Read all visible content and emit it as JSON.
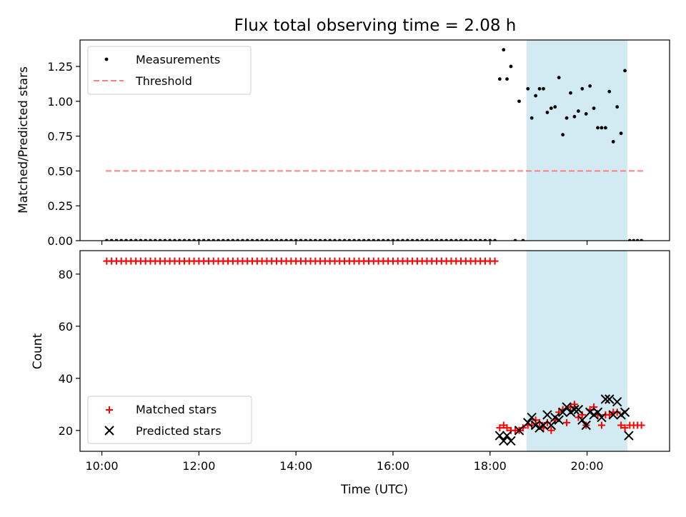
{
  "title": "Flux total observing time = 2.08 h",
  "colors": {
    "measurements": "#000000",
    "threshold": "#ff7f7f",
    "matched": "#ff0000",
    "predicted": "#000000",
    "band": "#add8e6"
  },
  "chart_data": [
    {
      "type": "scatter",
      "panel": "top",
      "ylabel": "Matched/Predicted stars",
      "xlabel": "",
      "xlim": [
        9.55,
        21.7
      ],
      "ylim": [
        0,
        1.44
      ],
      "yticks": [
        0.0,
        0.25,
        0.5,
        0.75,
        1.0,
        1.25
      ],
      "ytick_labels": [
        "0.00",
        "0.25",
        "0.50",
        "0.75",
        "1.00",
        "1.25"
      ],
      "xticks": [
        10,
        12,
        14,
        16,
        18,
        20
      ],
      "tick_labels_visible": false,
      "highlight_band": [
        18.75,
        20.83
      ],
      "legend": {
        "placement": "upper-left",
        "entries": [
          "Measurements",
          "Threshold"
        ]
      },
      "threshold": {
        "name": "Threshold",
        "y": 0.5,
        "x": [
          10.08,
          21.2
        ]
      },
      "series": [
        {
          "name": "Measurements",
          "zero_run": {
            "start": 10.1,
            "end": 18.1,
            "step": 0.1,
            "y": 0.0
          },
          "points": [
            [
              18.2,
              1.16
            ],
            [
              18.28,
              1.37
            ],
            [
              18.35,
              1.16
            ],
            [
              18.43,
              1.25
            ],
            [
              18.52,
              0.0
            ],
            [
              18.6,
              1.0
            ],
            [
              18.68,
              0.0
            ],
            [
              18.78,
              1.09
            ],
            [
              18.86,
              0.88
            ],
            [
              18.94,
              1.04
            ],
            [
              19.02,
              1.09
            ],
            [
              19.1,
              1.09
            ],
            [
              19.18,
              0.92
            ],
            [
              19.26,
              0.95
            ],
            [
              19.34,
              0.96
            ],
            [
              19.42,
              1.17
            ],
            [
              19.5,
              0.76
            ],
            [
              19.58,
              0.88
            ],
            [
              19.66,
              1.06
            ],
            [
              19.74,
              0.89
            ],
            [
              19.82,
              0.93
            ],
            [
              19.9,
              1.09
            ],
            [
              19.98,
              0.91
            ],
            [
              20.06,
              1.11
            ],
            [
              20.14,
              0.95
            ],
            [
              20.22,
              0.81
            ],
            [
              20.3,
              0.81
            ],
            [
              20.38,
              0.81
            ],
            [
              20.46,
              1.07
            ],
            [
              20.54,
              0.71
            ],
            [
              20.62,
              0.96
            ],
            [
              20.7,
              0.77
            ],
            [
              20.78,
              1.22
            ],
            [
              20.88,
              0.0
            ],
            [
              20.96,
              0.0
            ],
            [
              21.04,
              0.0
            ],
            [
              21.12,
              0.0
            ]
          ]
        }
      ]
    },
    {
      "type": "scatter",
      "panel": "bottom",
      "xlabel": "Time (UTC)",
      "ylabel": "Count",
      "xlim": [
        9.55,
        21.7
      ],
      "ylim": [
        12,
        89
      ],
      "yticks": [
        20,
        40,
        60,
        80
      ],
      "ytick_labels": [
        "20",
        "40",
        "60",
        "80"
      ],
      "xticks": [
        10,
        12,
        14,
        16,
        18,
        20
      ],
      "xtick_labels": [
        "10:00",
        "12:00",
        "14:00",
        "16:00",
        "18:00",
        "20:00"
      ],
      "highlight_band": [
        18.75,
        20.83
      ],
      "legend": {
        "placement": "lower-left",
        "entries": [
          "Matched stars",
          "Predicted stars"
        ]
      },
      "series": [
        {
          "name": "Matched stars",
          "marker": "plus",
          "constant_run": {
            "start": 10.1,
            "end": 18.1,
            "step": 0.1,
            "y": 85
          },
          "points": [
            [
              18.2,
              21
            ],
            [
              18.28,
              22
            ],
            [
              18.35,
              21
            ],
            [
              18.43,
              20
            ],
            [
              18.52,
              20
            ],
            [
              18.6,
              20
            ],
            [
              18.68,
              21
            ],
            [
              18.78,
              22
            ],
            [
              18.86,
              22
            ],
            [
              18.94,
              24
            ],
            [
              19.02,
              23
            ],
            [
              19.1,
              21
            ],
            [
              19.18,
              23
            ],
            [
              19.26,
              20
            ],
            [
              19.34,
              24
            ],
            [
              19.42,
              27
            ],
            [
              19.5,
              28
            ],
            [
              19.58,
              23
            ],
            [
              19.66,
              29
            ],
            [
              19.74,
              30
            ],
            [
              19.82,
              25
            ],
            [
              19.9,
              26
            ],
            [
              19.98,
              22
            ],
            [
              20.06,
              28
            ],
            [
              20.14,
              29
            ],
            [
              20.22,
              26
            ],
            [
              20.3,
              22
            ],
            [
              20.38,
              26
            ],
            [
              20.46,
              26
            ],
            [
              20.54,
              27
            ],
            [
              20.62,
              27
            ],
            [
              20.7,
              22
            ],
            [
              20.78,
              21
            ],
            [
              20.88,
              22
            ],
            [
              20.96,
              22
            ],
            [
              21.04,
              22
            ],
            [
              21.12,
              22
            ]
          ]
        },
        {
          "name": "Predicted stars",
          "marker": "x",
          "points": [
            [
              18.2,
              18
            ],
            [
              18.28,
              16
            ],
            [
              18.35,
              18
            ],
            [
              18.43,
              16
            ],
            [
              18.6,
              20
            ],
            [
              18.78,
              23
            ],
            [
              18.86,
              25
            ],
            [
              18.94,
              22
            ],
            [
              19.02,
              21
            ],
            [
              19.1,
              22
            ],
            [
              19.18,
              26
            ],
            [
              19.26,
              22
            ],
            [
              19.34,
              25
            ],
            [
              19.42,
              24
            ],
            [
              19.5,
              27
            ],
            [
              19.58,
              29
            ],
            [
              19.66,
              27
            ],
            [
              19.74,
              28
            ],
            [
              19.82,
              28
            ],
            [
              19.9,
              24
            ],
            [
              19.98,
              22
            ],
            [
              20.06,
              27
            ],
            [
              20.14,
              26
            ],
            [
              20.22,
              27
            ],
            [
              20.3,
              25
            ],
            [
              20.38,
              32
            ],
            [
              20.46,
              32
            ],
            [
              20.54,
              26
            ],
            [
              20.62,
              31
            ],
            [
              20.7,
              26
            ],
            [
              20.78,
              27
            ],
            [
              20.86,
              18
            ]
          ]
        }
      ]
    }
  ]
}
